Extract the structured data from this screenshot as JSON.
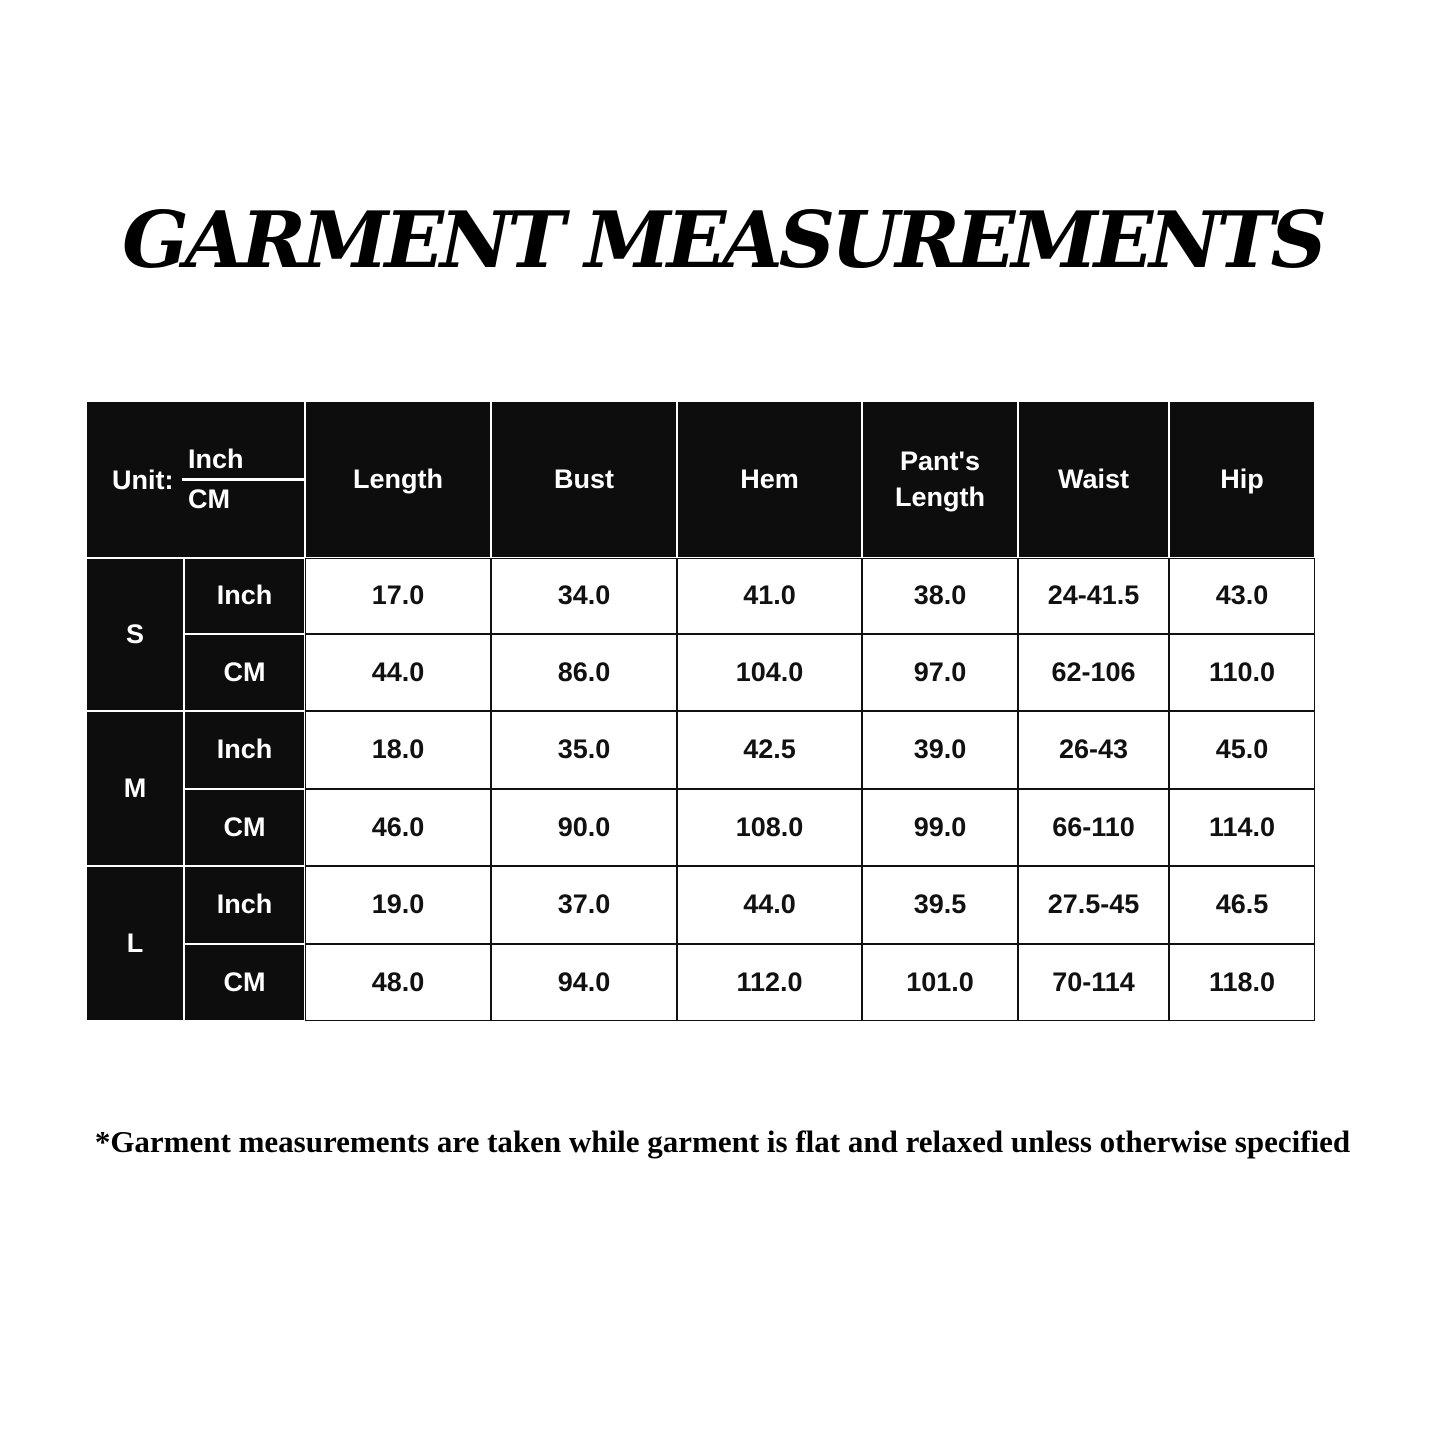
{
  "title": "GARMENT MEASUREMENTS",
  "table": {
    "unit_label": "Unit:",
    "unit_top": "Inch",
    "unit_bottom": "CM",
    "columns": [
      "Length",
      "Bust",
      "Hem",
      "Pant's Length",
      "Waist",
      "Hip"
    ],
    "sizes": [
      {
        "size": "S",
        "rows": [
          {
            "unit": "Inch",
            "values": [
              "17.0",
              "34.0",
              "41.0",
              "38.0",
              "24-41.5",
              "43.0"
            ]
          },
          {
            "unit": "CM",
            "values": [
              "44.0",
              "86.0",
              "104.0",
              "97.0",
              "62-106",
              "110.0"
            ]
          }
        ]
      },
      {
        "size": "M",
        "rows": [
          {
            "unit": "Inch",
            "values": [
              "18.0",
              "35.0",
              "42.5",
              "39.0",
              "26-43",
              "45.0"
            ]
          },
          {
            "unit": "CM",
            "values": [
              "46.0",
              "90.0",
              "108.0",
              "99.0",
              "66-110",
              "114.0"
            ]
          }
        ]
      },
      {
        "size": "L",
        "rows": [
          {
            "unit": "Inch",
            "values": [
              "19.0",
              "37.0",
              "44.0",
              "39.5",
              "27.5-45",
              "46.5"
            ]
          },
          {
            "unit": "CM",
            "values": [
              "48.0",
              "94.0",
              "112.0",
              "101.0",
              "70-114",
              "118.0"
            ]
          }
        ]
      }
    ]
  },
  "footnote": "*Garment measurements are taken while garment is flat and relaxed unless otherwise specified",
  "colors": {
    "header_bg": "#0d0d0d",
    "header_text": "#ffffff",
    "cell_bg": "#ffffff",
    "cell_text": "#111111"
  }
}
